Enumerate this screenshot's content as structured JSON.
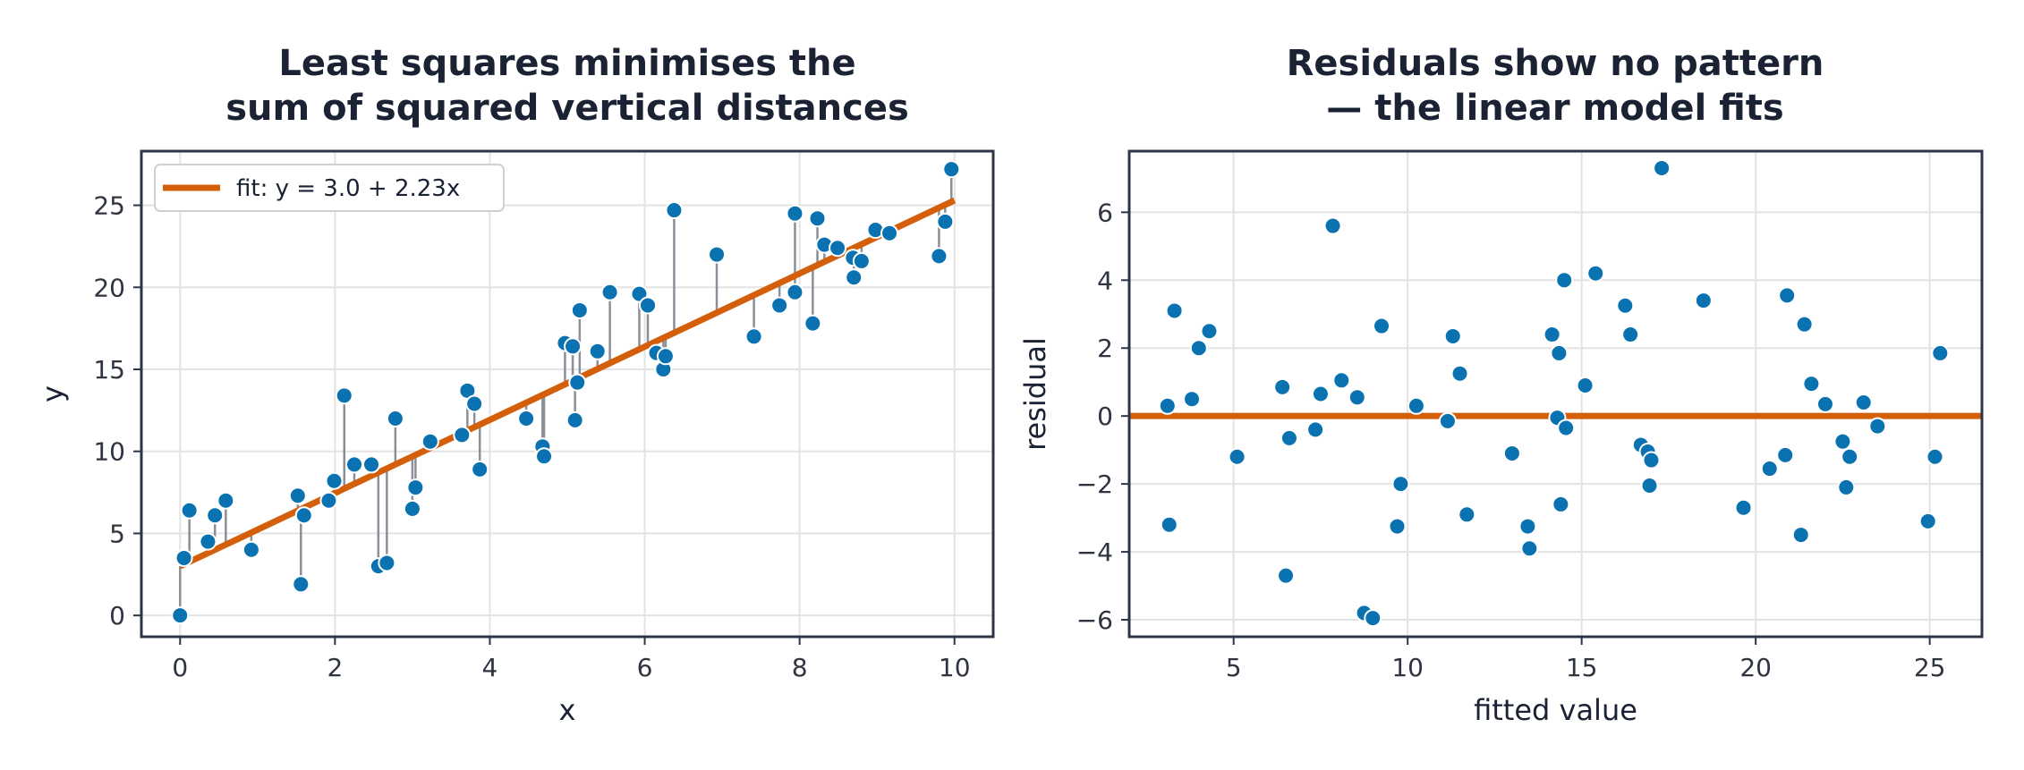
{
  "colors": {
    "point": "#0a72b0",
    "fit_line": "#d45f0b",
    "residual_segment": "#8a8f99",
    "grid": "#e3e3e3",
    "axes_frame": "#2e3448",
    "text": "#1a2233"
  },
  "chart_data": [
    {
      "type": "scatter",
      "title_lines": [
        "Least squares minimises the",
        "sum of squared vertical distances"
      ],
      "xlabel": "x",
      "ylabel": "y",
      "xlim": [
        -0.5,
        10.5
      ],
      "ylim": [
        -1.3,
        28.3
      ],
      "xticks": [
        0,
        2,
        4,
        6,
        8,
        10
      ],
      "yticks": [
        0,
        5,
        10,
        15,
        20,
        25
      ],
      "grid": true,
      "legend": {
        "placement": "top-left",
        "label": "fit:  y = 3.0 + 2.23x"
      },
      "fit": {
        "intercept": 3.0,
        "slope": 2.23,
        "x_range": [
          0,
          10
        ]
      },
      "show_residual_segments": true,
      "points": [
        [
          0.0,
          0.0
        ],
        [
          0.05,
          3.5
        ],
        [
          0.12,
          6.4
        ],
        [
          0.36,
          4.5
        ],
        [
          0.45,
          6.1
        ],
        [
          0.59,
          7.0
        ],
        [
          0.92,
          4.0
        ],
        [
          1.52,
          7.3
        ],
        [
          1.56,
          1.9
        ],
        [
          1.6,
          6.1
        ],
        [
          1.92,
          7.0
        ],
        [
          1.99,
          8.2
        ],
        [
          2.12,
          13.4
        ],
        [
          2.25,
          9.2
        ],
        [
          2.47,
          9.2
        ],
        [
          2.56,
          3.0
        ],
        [
          2.67,
          3.2
        ],
        [
          2.78,
          12.0
        ],
        [
          3.0,
          6.5
        ],
        [
          3.04,
          7.8
        ],
        [
          3.23,
          10.6
        ],
        [
          3.64,
          11.0
        ],
        [
          3.71,
          13.7
        ],
        [
          3.8,
          12.9
        ],
        [
          3.87,
          8.9
        ],
        [
          4.47,
          12.0
        ],
        [
          4.68,
          10.3
        ],
        [
          4.7,
          9.7
        ],
        [
          4.97,
          16.6
        ],
        [
          5.07,
          16.4
        ],
        [
          5.1,
          11.9
        ],
        [
          5.13,
          14.2
        ],
        [
          5.16,
          18.6
        ],
        [
          5.39,
          16.1
        ],
        [
          5.55,
          19.7
        ],
        [
          5.93,
          19.6
        ],
        [
          6.04,
          18.9
        ],
        [
          6.15,
          16.0
        ],
        [
          6.24,
          15.0
        ],
        [
          6.27,
          15.8
        ],
        [
          6.38,
          24.7
        ],
        [
          6.93,
          22.0
        ],
        [
          7.41,
          17.0
        ],
        [
          7.74,
          18.9
        ],
        [
          7.94,
          24.5
        ],
        [
          7.94,
          19.7
        ],
        [
          8.17,
          17.8
        ],
        [
          8.23,
          24.2
        ],
        [
          8.32,
          22.6
        ],
        [
          8.49,
          22.4
        ],
        [
          8.69,
          21.8
        ],
        [
          8.7,
          20.6
        ],
        [
          8.8,
          21.6
        ],
        [
          8.98,
          23.5
        ],
        [
          9.16,
          23.3
        ],
        [
          9.8,
          21.9
        ],
        [
          9.88,
          24.0
        ],
        [
          9.96,
          27.2
        ]
      ]
    },
    {
      "type": "scatter",
      "title_lines": [
        "Residuals show no pattern",
        "— the linear model fits"
      ],
      "xlabel": "fitted value",
      "ylabel": "residual",
      "xlim": [
        2.0,
        26.5
      ],
      "ylim": [
        -6.5,
        7.8
      ],
      "xticks": [
        5,
        10,
        15,
        20,
        25
      ],
      "yticks": [
        -6,
        -4,
        -2,
        0,
        2,
        4,
        6
      ],
      "grid": true,
      "reference_line_y": 0,
      "points": [
        [
          3.1,
          0.3
        ],
        [
          3.15,
          -3.2
        ],
        [
          3.3,
          3.1
        ],
        [
          3.8,
          0.5
        ],
        [
          4.0,
          2.0
        ],
        [
          4.3,
          2.5
        ],
        [
          5.1,
          -1.2
        ],
        [
          6.4,
          0.85
        ],
        [
          6.5,
          -4.7
        ],
        [
          6.6,
          -0.65
        ],
        [
          7.35,
          -0.4
        ],
        [
          7.5,
          0.65
        ],
        [
          7.85,
          5.6
        ],
        [
          8.1,
          1.05
        ],
        [
          8.55,
          0.55
        ],
        [
          8.75,
          -5.8
        ],
        [
          9.0,
          -5.95
        ],
        [
          9.25,
          2.65
        ],
        [
          9.7,
          -3.25
        ],
        [
          9.8,
          -2.0
        ],
        [
          10.25,
          0.3
        ],
        [
          11.15,
          -0.15
        ],
        [
          11.3,
          2.35
        ],
        [
          11.5,
          1.25
        ],
        [
          11.7,
          -2.9
        ],
        [
          13.0,
          -1.1
        ],
        [
          13.45,
          -3.25
        ],
        [
          13.5,
          -3.9
        ],
        [
          14.15,
          2.4
        ],
        [
          14.3,
          -0.05
        ],
        [
          14.35,
          1.85
        ],
        [
          14.4,
          -2.6
        ],
        [
          14.5,
          4.0
        ],
        [
          14.55,
          -0.35
        ],
        [
          15.1,
          0.9
        ],
        [
          15.4,
          4.2
        ],
        [
          16.25,
          3.25
        ],
        [
          16.4,
          2.4
        ],
        [
          16.7,
          -0.85
        ],
        [
          16.9,
          -1.05
        ],
        [
          16.95,
          -2.05
        ],
        [
          17.0,
          -1.3
        ],
        [
          17.3,
          7.3
        ],
        [
          18.5,
          3.4
        ],
        [
          19.65,
          -2.7
        ],
        [
          20.4,
          -1.55
        ],
        [
          20.85,
          -1.15
        ],
        [
          20.9,
          3.55
        ],
        [
          21.3,
          -3.5
        ],
        [
          21.4,
          2.7
        ],
        [
          21.6,
          0.95
        ],
        [
          22.0,
          0.35
        ],
        [
          22.5,
          -0.75
        ],
        [
          22.6,
          -2.1
        ],
        [
          22.7,
          -1.2
        ],
        [
          23.1,
          0.4
        ],
        [
          23.5,
          -0.3
        ],
        [
          24.95,
          -3.1
        ],
        [
          25.15,
          -1.2
        ],
        [
          25.3,
          1.85
        ]
      ]
    }
  ]
}
